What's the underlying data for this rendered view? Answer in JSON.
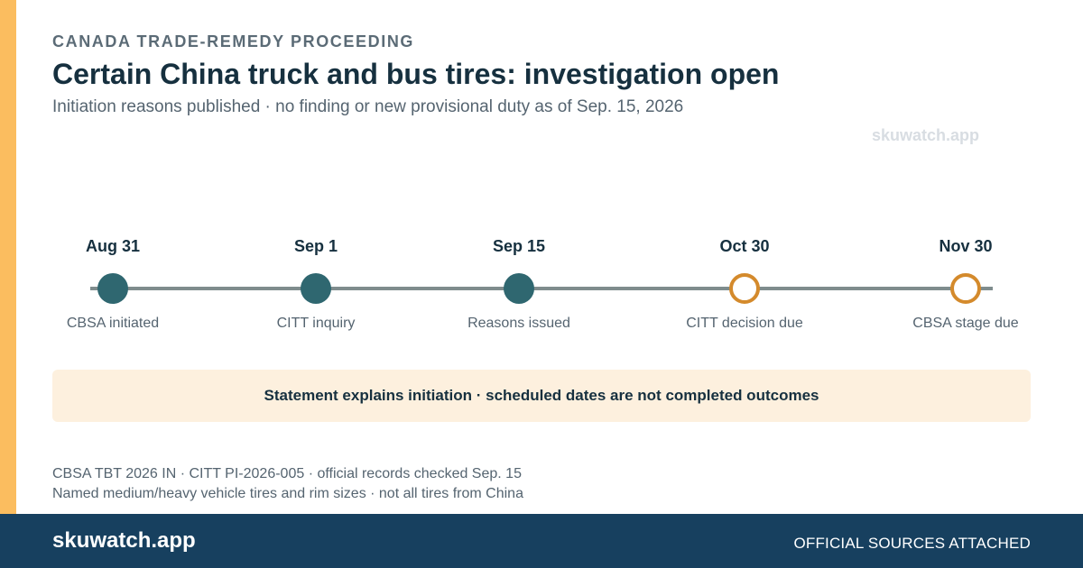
{
  "header": {
    "eyebrow": "CANADA TRADE-REMEDY PROCEEDING",
    "title": "Certain China truck and bus tires: investigation open",
    "subtitle": "Initiation reasons published · no finding or new provisional duty as of Sep. 15, 2026",
    "watermark": "skuwatch.app"
  },
  "colors": {
    "accent": "#fbbd5f",
    "completed": "#2f6770",
    "scheduled": "#d48a2c",
    "footer": "#17405f",
    "notice_bg": "#fdf0de"
  },
  "timeline": {
    "milestones": [
      {
        "date": "Aug 31",
        "label": "CBSA initiated",
        "status": "completed"
      },
      {
        "date": "Sep 1",
        "label": "CITT inquiry",
        "status": "completed"
      },
      {
        "date": "Sep 15",
        "label": "Reasons issued",
        "status": "completed"
      },
      {
        "date": "Oct 30",
        "label": "CITT decision due",
        "status": "scheduled"
      },
      {
        "date": "Nov 30",
        "label": "CBSA stage due",
        "status": "scheduled"
      }
    ]
  },
  "notice": {
    "text": "Statement explains initiation · scheduled dates are not completed outcomes"
  },
  "sources": {
    "line1": "CBSA TBT 2026 IN · CITT PI-2026-005 · official records checked Sep. 15",
    "line2": "Named medium/heavy vehicle tires and rim sizes · not all tires from China"
  },
  "footer": {
    "brand": "skuwatch.app",
    "tag": "OFFICIAL SOURCES ATTACHED"
  }
}
